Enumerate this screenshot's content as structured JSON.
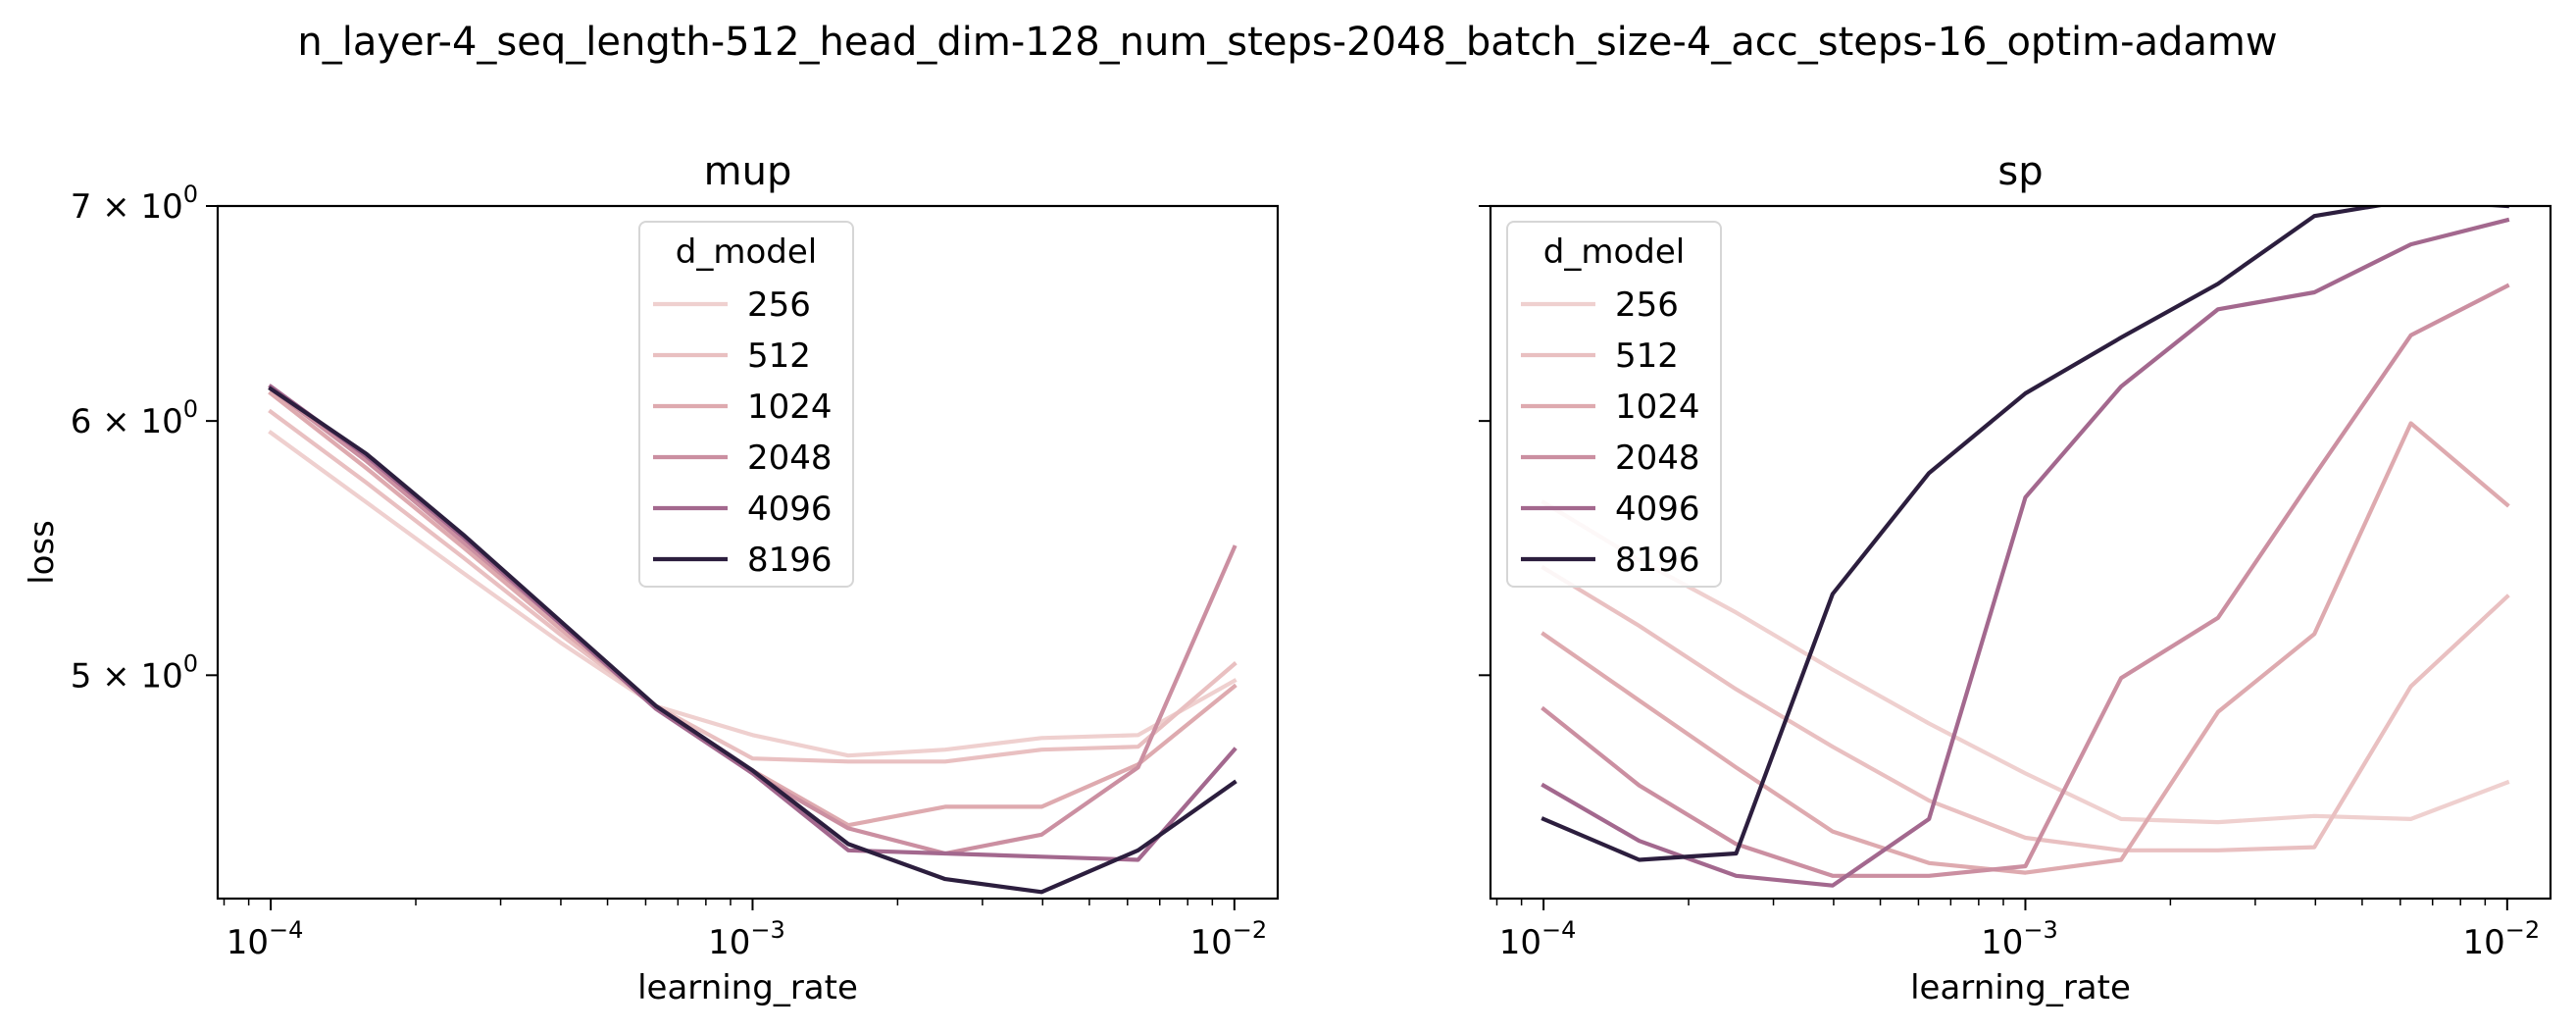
{
  "suptitle": "n_layer-4_seq_length-512_head_dim-128_num_steps-2048_batch_size-4_acc_steps-16_optim-adamw",
  "legend_title": "d_model",
  "series_colors": {
    "256": "#efd0cf",
    "512": "#e9c0c1",
    "1024": "#deaaaf",
    "2048": "#cb8fa1",
    "4096": "#a3688e",
    "8196": "#2c1e3e"
  },
  "chart_data": [
    {
      "type": "line",
      "title": "mup",
      "xlabel": "learning_rate",
      "ylabel": "loss",
      "xscale": "log",
      "yscale": "log",
      "xlim": [
        7.76e-05,
        0.0123
      ],
      "ylim": [
        4.26,
        7.0
      ],
      "x_ticks": [
        {
          "value": 0.0001,
          "base": "10",
          "exp": "−4"
        },
        {
          "value": 0.001,
          "base": "10",
          "exp": "−3"
        },
        {
          "value": 0.01,
          "base": "10",
          "exp": "−2"
        }
      ],
      "y_ticks": [
        {
          "value": 7,
          "label": "7 × 10",
          "exp": "0"
        },
        {
          "value": 6,
          "label": "6 × 10",
          "exp": "0"
        },
        {
          "value": 5,
          "label": "5 × 10",
          "exp": "0"
        }
      ],
      "legend_position": "top-center",
      "x": [
        0.0001,
        0.000158,
        0.000251,
        0.000398,
        0.000631,
        0.001,
        0.00158,
        0.00251,
        0.00398,
        0.00631,
        0.01
      ],
      "series": [
        {
          "name": "256",
          "values": [
            5.95,
            5.66,
            5.38,
            5.12,
            4.89,
            4.79,
            4.72,
            4.74,
            4.78,
            4.79,
            4.98
          ]
        },
        {
          "name": "512",
          "values": [
            6.04,
            5.74,
            5.44,
            5.15,
            4.89,
            4.71,
            4.7,
            4.7,
            4.74,
            4.75,
            5.04
          ]
        },
        {
          "name": "1024",
          "values": [
            6.12,
            5.8,
            5.48,
            5.17,
            4.89,
            4.67,
            4.49,
            4.55,
            4.55,
            4.69,
            4.96
          ]
        },
        {
          "name": "2048",
          "values": [
            6.14,
            5.83,
            5.5,
            5.19,
            4.89,
            4.66,
            4.48,
            4.4,
            4.46,
            4.68,
            5.48
          ]
        },
        {
          "name": "4096",
          "values": [
            6.15,
            5.85,
            5.52,
            5.19,
            4.88,
            4.66,
            4.41,
            4.4,
            4.39,
            4.38,
            4.74
          ]
        },
        {
          "name": "8196",
          "values": [
            6.14,
            5.86,
            5.53,
            5.2,
            4.89,
            4.67,
            4.43,
            4.32,
            4.28,
            4.41,
            4.63
          ]
        }
      ]
    },
    {
      "type": "line",
      "title": "sp",
      "xlabel": "learning_rate",
      "ylabel": "",
      "xscale": "log",
      "yscale": "log",
      "xlim": [
        7.76e-05,
        0.0123
      ],
      "ylim": [
        4.26,
        7.0
      ],
      "x_ticks": [
        {
          "value": 0.0001,
          "base": "10",
          "exp": "−4"
        },
        {
          "value": 0.001,
          "base": "10",
          "exp": "−3"
        },
        {
          "value": 0.01,
          "base": "10",
          "exp": "−2"
        }
      ],
      "y_ticks": [
        {
          "value": 7,
          "label": "",
          "exp": ""
        },
        {
          "value": 6,
          "label": "",
          "exp": ""
        },
        {
          "value": 5,
          "label": "",
          "exp": ""
        }
      ],
      "legend_position": "top-left",
      "x": [
        0.0001,
        0.000158,
        0.000251,
        0.000398,
        0.000631,
        0.001,
        0.00158,
        0.00251,
        0.00398,
        0.00631,
        0.01
      ],
      "series": [
        {
          "name": "256",
          "values": [
            5.66,
            5.43,
            5.23,
            5.02,
            4.83,
            4.66,
            4.51,
            4.5,
            4.52,
            4.51,
            4.63
          ]
        },
        {
          "name": "512",
          "values": [
            5.4,
            5.18,
            4.95,
            4.75,
            4.57,
            4.45,
            4.41,
            4.41,
            4.42,
            4.96,
            5.29
          ]
        },
        {
          "name": "1024",
          "values": [
            5.15,
            4.91,
            4.68,
            4.47,
            4.37,
            4.34,
            4.38,
            4.87,
            5.15,
            5.99,
            5.65
          ]
        },
        {
          "name": "2048",
          "values": [
            4.88,
            4.62,
            4.43,
            4.33,
            4.33,
            4.36,
            4.99,
            5.21,
            5.77,
            6.38,
            6.61
          ]
        },
        {
          "name": "4096",
          "values": [
            4.62,
            4.44,
            4.33,
            4.3,
            4.51,
            5.68,
            6.15,
            6.5,
            6.58,
            6.81,
            6.93
          ]
        },
        {
          "name": "8196",
          "values": [
            4.51,
            4.38,
            4.4,
            5.3,
            5.78,
            6.12,
            6.37,
            6.62,
            6.95,
            7.03,
            7.0
          ]
        }
      ]
    }
  ]
}
